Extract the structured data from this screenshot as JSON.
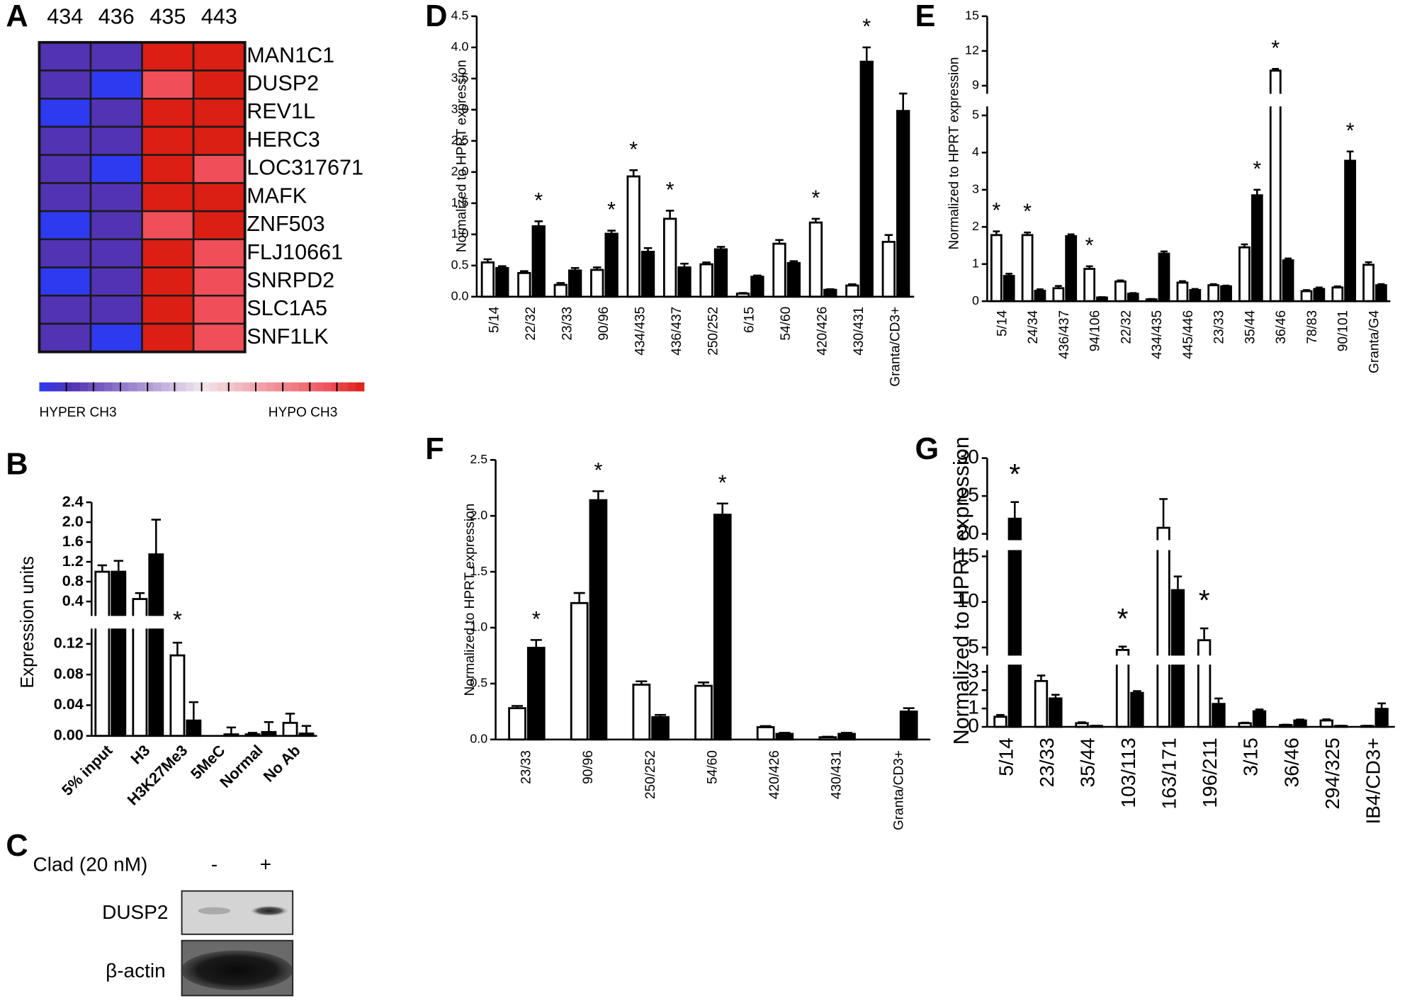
{
  "chart_data": [
    {
      "type": "heatmap",
      "panel": "A",
      "columns": [
        "434",
        "436",
        "435",
        "443"
      ],
      "rows": [
        "MAN1C1",
        "DUSP2",
        "REV1L",
        "HERC3",
        "LOC317671",
        "MAFK",
        "ZNF503",
        "FLJ10661",
        "SNRPD2",
        "SLC1A5",
        "SNF1LK"
      ],
      "values": [
        [
          -0.8,
          -0.8,
          1,
          1
        ],
        [
          -0.8,
          -1,
          0.8,
          1
        ],
        [
          -1,
          -0.8,
          1,
          1
        ],
        [
          -0.8,
          -0.8,
          1,
          1
        ],
        [
          -0.8,
          -1,
          1,
          0.8
        ],
        [
          -0.8,
          -0.8,
          1,
          1
        ],
        [
          -1,
          -0.8,
          0.8,
          1
        ],
        [
          -0.8,
          -0.8,
          1,
          0.8
        ],
        [
          -1,
          -0.8,
          1,
          0.8
        ],
        [
          -0.8,
          -0.8,
          1,
          0.8
        ],
        [
          -0.8,
          -1,
          1,
          0.8
        ]
      ],
      "colormap": [
        [
          -1,
          "#2e3af0"
        ],
        [
          -0.8,
          "#5233b4"
        ],
        [
          0,
          "#f2e6ee"
        ],
        [
          0.8,
          "#f04e58"
        ],
        [
          1,
          "#dc1f14"
        ]
      ],
      "colorbar_labels": [
        "HYPER CH3",
        "HYPO CH3"
      ]
    },
    {
      "type": "bar",
      "panel": "B",
      "y_label": "Expression units",
      "categories": [
        "5% input",
        "H3",
        "H3K27Me3",
        "5MeC",
        "Normal",
        "No Ab"
      ],
      "series": [
        {
          "color": "#ffffff",
          "values": [
            1.0,
            0.45,
            0.105,
            0.0,
            0.002,
            0.017
          ],
          "errors": [
            0.13,
            0.12,
            0.023,
            0.0,
            0.002,
            0.012
          ]
        },
        {
          "color": "#000000",
          "values": [
            1.0,
            1.35,
            0.02,
            0.002,
            0.005,
            0.003
          ],
          "errors": [
            0.22,
            0.7,
            0.024,
            0.009,
            0.013,
            0.01
          ]
        }
      ],
      "ylim": [
        0,
        2.4
      ],
      "axis_breaks": [
        [
          0.12,
          0.4
        ]
      ],
      "yticks": [
        {
          "value": 0,
          "label": "0.00"
        },
        0.04,
        0.08,
        0.12,
        0.4,
        0.8,
        1.2,
        1.6,
        {
          "value": 2,
          "label": "2.0"
        },
        2.4
      ],
      "annotations": [
        {
          "text": "*",
          "category": 2
        }
      ]
    },
    {
      "type": "bar",
      "panel": "D",
      "y_label": "Normalized to HPRT expression",
      "categories": [
        "5/14",
        "22/32",
        "23/33",
        "90/96",
        "434/435",
        "436/437",
        "250/252",
        "6/15",
        "54/60",
        "420/426",
        "430/431",
        "Granta/CD3+"
      ],
      "series": [
        {
          "color": "#ffffff",
          "values": [
            0.55,
            0.38,
            0.19,
            0.43,
            1.93,
            1.25,
            0.52,
            0.05,
            0.85,
            1.19,
            0.18,
            0.88
          ],
          "errors": [
            0.05,
            0.03,
            0.03,
            0.04,
            0.1,
            0.13,
            0.03,
            0.01,
            0.06,
            0.06,
            0.02,
            0.11
          ]
        },
        {
          "color": "#000000",
          "values": [
            0.46,
            1.13,
            0.42,
            1.01,
            0.72,
            0.47,
            0.76,
            0.32,
            0.54,
            0.11,
            3.77,
            2.98
          ],
          "errors": [
            0.03,
            0.08,
            0.04,
            0.05,
            0.06,
            0.06,
            0.04,
            0.02,
            0.03,
            0.01,
            0.23,
            0.28
          ]
        }
      ],
      "ylim": [
        0,
        4.5
      ],
      "yticks": [
        {
          "value": 0,
          "label": "0.0"
        },
        0.5,
        {
          "value": 1,
          "label": "1.0"
        },
        1.5,
        {
          "value": 2,
          "label": "2.0"
        },
        2.5,
        {
          "value": 3,
          "label": "3.0"
        },
        3.5,
        {
          "value": 4,
          "label": "4.0"
        },
        4.5
      ],
      "annotations": [
        {
          "text": "*",
          "category": 1
        },
        {
          "text": "*",
          "category": 3
        },
        {
          "text": "*",
          "category": 4
        },
        {
          "text": "*",
          "category": 5
        },
        {
          "text": "*",
          "category": 9
        },
        {
          "text": "*",
          "category": 10
        }
      ]
    },
    {
      "type": "bar",
      "panel": "E",
      "y_label": "Normalized to HPRT expression",
      "categories": [
        "5/14",
        "24/34",
        "436/437",
        "94/106",
        "22/32",
        "434/435",
        "445/446",
        "23/33",
        "35/44",
        "36/46",
        "78/83",
        "90/101",
        "Granta/G4"
      ],
      "series": [
        {
          "color": "#ffffff",
          "values": [
            1.78,
            1.78,
            0.35,
            0.87,
            0.53,
            0.05,
            0.5,
            0.43,
            1.45,
            10.3,
            0.27,
            0.37,
            0.98
          ],
          "errors": [
            0.1,
            0.07,
            0.06,
            0.07,
            0.03,
            0.01,
            0.04,
            0.03,
            0.08,
            0.15,
            0.03,
            0.03,
            0.07
          ]
        },
        {
          "color": "#000000",
          "values": [
            0.68,
            0.28,
            1.75,
            0.1,
            0.2,
            1.28,
            0.3,
            0.4,
            2.85,
            1.1,
            0.33,
            3.78,
            0.43
          ],
          "errors": [
            0.06,
            0.04,
            0.05,
            0.01,
            0.02,
            0.06,
            0.03,
            0.02,
            0.15,
            0.05,
            0.04,
            0.25,
            0.03
          ]
        }
      ],
      "ylim": [
        0,
        15
      ],
      "axis_breaks": [
        [
          5,
          9
        ]
      ],
      "yticks": [
        0,
        1,
        2,
        3,
        4,
        5,
        9,
        12,
        15
      ],
      "annotations": [
        {
          "text": "*",
          "category": 0
        },
        {
          "text": "*",
          "category": 1
        },
        {
          "text": "*",
          "category": 3
        },
        {
          "text": "*",
          "category": 8
        },
        {
          "text": "*",
          "category": 9
        },
        {
          "text": "*",
          "category": 11
        }
      ]
    },
    {
      "type": "bar",
      "panel": "F",
      "y_label": "Normalized to HPRT expression",
      "categories": [
        "23/33",
        "90/96",
        "250/252",
        "54/60",
        "420/426",
        "430/431",
        "Granta/CD3+"
      ],
      "series": [
        {
          "color": "#ffffff",
          "values": [
            0.28,
            1.22,
            0.49,
            0.48,
            0.11,
            0.02,
            null
          ],
          "errors": [
            0.02,
            0.09,
            0.03,
            0.03,
            0.01,
            0.005,
            null
          ]
        },
        {
          "color": "#000000",
          "values": [
            0.82,
            2.14,
            0.2,
            2.01,
            0.05,
            0.05,
            0.25
          ],
          "errors": [
            0.07,
            0.08,
            0.02,
            0.1,
            0.01,
            0.01,
            0.03
          ]
        }
      ],
      "ylim": [
        0,
        2.5
      ],
      "yticks": [
        {
          "value": 0,
          "label": "0.0"
        },
        0.5,
        {
          "value": 1,
          "label": "1.0"
        },
        1.5,
        {
          "value": 2,
          "label": "2.0"
        },
        2.5
      ],
      "annotations": [
        {
          "text": "*",
          "category": 0
        },
        {
          "text": "*",
          "category": 1
        },
        {
          "text": "*",
          "category": 3
        }
      ]
    },
    {
      "type": "bar",
      "panel": "G",
      "y_label": "Normalized to HPRT expression",
      "categories": [
        "5/14",
        "23/33",
        "35/44",
        "103/113",
        "163/171",
        "196/211",
        "3/15",
        "36/46",
        "294/325",
        "IB4/CD3+"
      ],
      "series": [
        {
          "color": "#ffffff",
          "values": [
            0.55,
            2.5,
            0.2,
            4.8,
            20.8,
            5.8,
            0.2,
            0.1,
            0.35,
            0.05
          ],
          "errors": [
            0.1,
            0.3,
            0.05,
            0.3,
            3.8,
            1.3,
            0.03,
            0.02,
            0.06,
            0.01
          ]
        },
        {
          "color": "#000000",
          "values": [
            22,
            1.55,
            0.05,
            1.85,
            11.3,
            1.25,
            0.85,
            0.35,
            0.05,
            0.98
          ],
          "errors": [
            2.2,
            0.2,
            0.01,
            0.1,
            1.5,
            0.3,
            0.1,
            0.05,
            0.01,
            0.3
          ]
        }
      ],
      "ylim": [
        0,
        30
      ],
      "axis_breaks": [
        [
          3,
          5
        ],
        [
          15,
          20
        ]
      ],
      "yticks": [
        0,
        1,
        2,
        3,
        5,
        10,
        15,
        20,
        25,
        30
      ],
      "annotations": [
        {
          "text": "*",
          "category": 0
        },
        {
          "text": "*",
          "category": 3
        },
        {
          "text": "*",
          "category": 5
        }
      ]
    }
  ],
  "blot": {
    "panel": "C",
    "treatment": "Clad (20 nM)",
    "lanes": [
      "-",
      "+"
    ],
    "proteins": [
      "DUSP2",
      "β-actin"
    ]
  }
}
